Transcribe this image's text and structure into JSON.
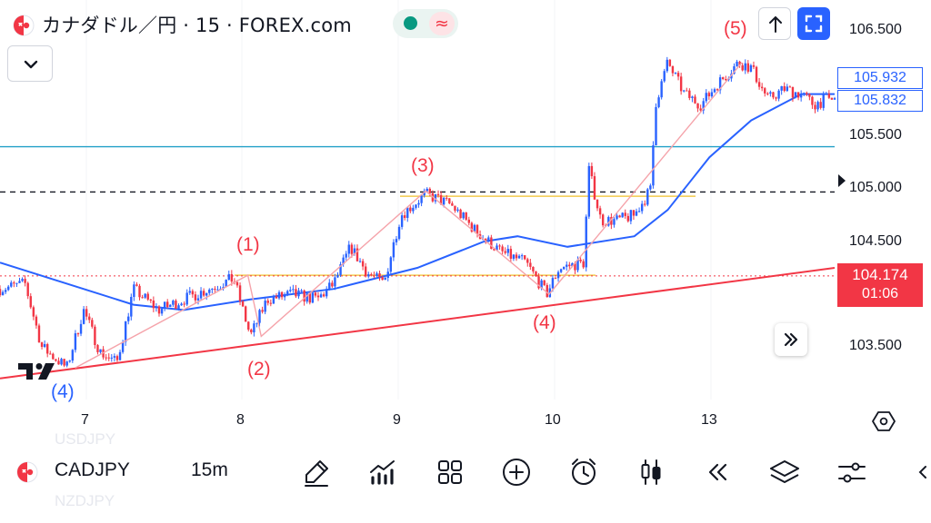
{
  "header": {
    "title": "カナダドル／円 · 15 · FOREX.com",
    "flag_icon": "canada-japan-flag-icon",
    "market_status_icon": "market-open-dot-icon",
    "wave_symbol": "≈",
    "wave_icon": "delayed-data-wave-icon",
    "collapse_icon": "chevron-down-icon",
    "scroll_up_icon": "arrow-up-icon",
    "fullscreen_icon": "fullscreen-icon"
  },
  "price_axis": {
    "labels": [
      "106.500",
      "105.500",
      "105.000",
      "104.500",
      "103.500"
    ],
    "box_labels": [
      "105.932",
      "105.832"
    ],
    "current_price": "104.174",
    "countdown": "01:06",
    "current_color": "#f23645",
    "box_color": "#2962ff"
  },
  "time_axis": {
    "labels": [
      "7",
      "8",
      "9",
      "10",
      "13"
    ]
  },
  "annotations": {
    "wave_1": "(1)",
    "wave_2": "(2)",
    "wave_3": "(3)",
    "wave_4": "(4)",
    "wave_5": "(5)",
    "wave_4_prev": "(4)"
  },
  "chart_data": {
    "type": "candlestick",
    "symbol": "CADJPY",
    "interval": "15m",
    "ylim": [
      103.1,
      106.6
    ],
    "x_ticks": [
      "7",
      "8",
      "9",
      "10",
      "13"
    ],
    "close_path": [
      [
        0,
        104.05
      ],
      [
        0.03,
        104.1
      ],
      [
        0.05,
        103.5
      ],
      [
        0.08,
        103.3
      ],
      [
        0.1,
        103.85
      ],
      [
        0.12,
        103.45
      ],
      [
        0.14,
        103.35
      ],
      [
        0.16,
        104.05
      ],
      [
        0.19,
        103.85
      ],
      [
        0.22,
        103.95
      ],
      [
        0.25,
        104.05
      ],
      [
        0.28,
        104.15
      ],
      [
        0.3,
        103.6
      ],
      [
        0.32,
        103.95
      ],
      [
        0.35,
        104.0
      ],
      [
        0.38,
        103.95
      ],
      [
        0.4,
        104.1
      ],
      [
        0.42,
        104.45
      ],
      [
        0.44,
        104.2
      ],
      [
        0.46,
        104.1
      ],
      [
        0.48,
        104.75
      ],
      [
        0.51,
        104.95
      ],
      [
        0.54,
        104.85
      ],
      [
        0.57,
        104.6
      ],
      [
        0.6,
        104.4
      ],
      [
        0.63,
        104.3
      ],
      [
        0.655,
        104.0
      ],
      [
        0.67,
        104.25
      ],
      [
        0.7,
        104.3
      ],
      [
        0.705,
        105.2
      ],
      [
        0.72,
        104.7
      ],
      [
        0.74,
        104.7
      ],
      [
        0.76,
        104.75
      ],
      [
        0.78,
        105.0
      ],
      [
        0.785,
        105.8
      ],
      [
        0.8,
        106.2
      ],
      [
        0.82,
        105.9
      ],
      [
        0.84,
        105.8
      ],
      [
        0.86,
        106.0
      ],
      [
        0.885,
        106.2
      ],
      [
        0.9,
        106.15
      ],
      [
        0.92,
        105.85
      ],
      [
        0.94,
        105.95
      ],
      [
        0.96,
        105.9
      ],
      [
        0.975,
        105.8
      ],
      [
        0.99,
        105.85
      ]
    ],
    "moving_average": [
      [
        0,
        104.3
      ],
      [
        0.1,
        104.05
      ],
      [
        0.16,
        103.9
      ],
      [
        0.22,
        103.85
      ],
      [
        0.3,
        103.95
      ],
      [
        0.4,
        104.05
      ],
      [
        0.5,
        104.25
      ],
      [
        0.58,
        104.5
      ],
      [
        0.62,
        104.55
      ],
      [
        0.68,
        104.45
      ],
      [
        0.76,
        104.55
      ],
      [
        0.8,
        104.8
      ],
      [
        0.85,
        105.3
      ],
      [
        0.9,
        105.65
      ],
      [
        0.96,
        105.9
      ],
      [
        1.0,
        105.9
      ]
    ],
    "trendline": {
      "from": [
        0,
        103.2
      ],
      "to": [
        1.0,
        104.25
      ],
      "color": "#f23645"
    },
    "wave_counts": [
      {
        "label": "(4)",
        "x": 0.09,
        "price": 103.3,
        "color": "#2962ff"
      },
      {
        "label": "(1)",
        "x": 0.297,
        "price": 104.18
      },
      {
        "label": "(2)",
        "x": 0.313,
        "price": 103.6
      },
      {
        "label": "(3)",
        "x": 0.51,
        "price": 104.98
      },
      {
        "label": "(4)",
        "x": 0.658,
        "price": 104.0
      },
      {
        "label": "(5)",
        "x": 0.889,
        "price": 106.2
      }
    ],
    "horizontal_lines": [
      {
        "price": 105.4,
        "color": "#22a0c8",
        "style": "solid"
      },
      {
        "price": 104.97,
        "color": "#131722",
        "style": "dashed"
      },
      {
        "price": 104.93,
        "color": "#f2c94c",
        "style": "solid"
      },
      {
        "price": 104.18,
        "color": "#f2c94c",
        "style": "solid"
      },
      {
        "price": 104.174,
        "color": "#f23645",
        "style": "dotted"
      }
    ]
  },
  "bottom_bar": {
    "symbol": "CADJPY",
    "interval": "15m",
    "ghost_above": "USDJPY",
    "ghost_below": "NZDJPY",
    "flag_icon": "canada-japan-flag-icon",
    "tools": [
      {
        "name": "drawing-pen-icon"
      },
      {
        "name": "indicators-icon"
      },
      {
        "name": "layout-grid-icon"
      },
      {
        "name": "add-circle-icon"
      },
      {
        "name": "alarm-clock-icon"
      },
      {
        "name": "candles-icon"
      },
      {
        "name": "replay-rewind-icon"
      },
      {
        "name": "layers-icon"
      },
      {
        "name": "settings-sliders-icon"
      }
    ],
    "edge_icon": "chevron-left-icon"
  },
  "overlay": {
    "scroll_icon": "double-chevron-right-icon",
    "logo_icon": "tradingview-logo-icon",
    "settings_icon": "hexagon-settings-icon"
  }
}
